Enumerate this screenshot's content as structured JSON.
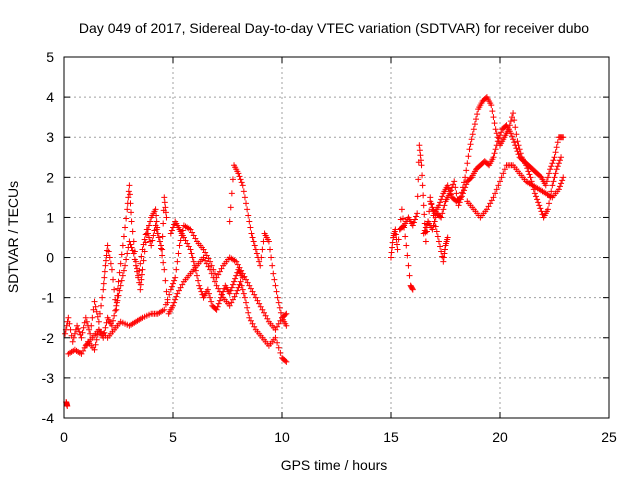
{
  "chart_data": {
    "type": "scatter",
    "title": "Day 049 of 2017, Sidereal Day-to-day VTEC variation (SDTVAR) for receiver dubo",
    "xlabel": "GPS time / hours",
    "ylabel": "SDTVAR / TECUs",
    "xlim": [
      0,
      25
    ],
    "ylim": [
      -4,
      5
    ],
    "xticks": [
      0,
      5,
      10,
      15,
      20,
      25
    ],
    "yticks": [
      -4,
      -3,
      -2,
      -1,
      0,
      1,
      2,
      3,
      4,
      5
    ],
    "grid": true,
    "marker": "+",
    "series": [
      {
        "name": "SDTVAR",
        "color": "#ff0000",
        "segments": [
          [
            [
              0.05,
              -1.9
            ],
            [
              0.2,
              -1.5
            ],
            [
              0.4,
              -2.1
            ],
            [
              0.6,
              -1.7
            ],
            [
              0.8,
              -2.0
            ],
            [
              1.0,
              -1.5
            ],
            [
              1.2,
              -1.9
            ],
            [
              1.4,
              -1.1
            ],
            [
              1.6,
              -1.6
            ],
            [
              1.8,
              -0.8
            ],
            [
              1.9,
              -0.2
            ],
            [
              2.0,
              0.3
            ],
            [
              2.2,
              -0.3
            ],
            [
              2.4,
              -1.3
            ],
            [
              2.5,
              -0.6
            ],
            [
              2.7,
              0.3
            ],
            [
              2.9,
              1.2
            ],
            [
              3.0,
              1.8
            ],
            [
              3.1,
              0.9
            ],
            [
              3.3,
              -0.1
            ],
            [
              3.5,
              -0.8
            ],
            [
              3.6,
              -0.3
            ],
            [
              3.8,
              0.6
            ],
            [
              4.0,
              1.0
            ],
            [
              4.2,
              1.2
            ],
            [
              4.3,
              0.6
            ],
            [
              4.5,
              0.2
            ],
            [
              4.6,
              1.5
            ],
            [
              4.7,
              1.0
            ]
          ],
          [
            [
              0.2,
              -2.4
            ],
            [
              0.5,
              -2.3
            ],
            [
              0.8,
              -2.4
            ],
            [
              1.1,
              -2.1
            ],
            [
              1.4,
              -2.3
            ],
            [
              1.6,
              -1.8
            ],
            [
              1.8,
              -2.0
            ],
            [
              2.0,
              -1.5
            ],
            [
              2.2,
              -1.7
            ],
            [
              2.4,
              -1.2
            ],
            [
              2.6,
              -0.7
            ],
            [
              2.8,
              -0.2
            ],
            [
              3.0,
              0.4
            ],
            [
              3.2,
              0.1
            ],
            [
              3.4,
              -0.5
            ],
            [
              3.6,
              0.2
            ],
            [
              3.8,
              0.7
            ],
            [
              4.0,
              0.3
            ],
            [
              4.2,
              0.8
            ],
            [
              4.4,
              0.4
            ],
            [
              4.6,
              -0.3
            ],
            [
              4.8,
              -1.4
            ],
            [
              5.0,
              -1.2
            ],
            [
              5.2,
              -0.9
            ],
            [
              5.5,
              -0.6
            ],
            [
              5.8,
              -0.4
            ],
            [
              6.1,
              -0.2
            ],
            [
              6.4,
              0.0
            ],
            [
              6.7,
              -0.3
            ],
            [
              7.0,
              -0.7
            ],
            [
              7.3,
              -1.0
            ],
            [
              7.6,
              -1.2
            ],
            [
              7.9,
              -0.9
            ],
            [
              8.1,
              -0.6
            ],
            [
              8.3,
              -1.0
            ],
            [
              8.5,
              -1.5
            ],
            [
              8.8,
              -1.8
            ],
            [
              9.1,
              -2.0
            ],
            [
              9.4,
              -2.2
            ],
            [
              9.7,
              -2.0
            ],
            [
              10.0,
              -2.5
            ],
            [
              10.2,
              -2.6
            ]
          ],
          [
            [
              1.0,
              -2.2
            ],
            [
              1.3,
              -2.0
            ],
            [
              1.6,
              -1.8
            ],
            [
              2.0,
              -2.0
            ],
            [
              2.3,
              -1.8
            ],
            [
              2.6,
              -1.6
            ],
            [
              3.0,
              -1.7
            ],
            [
              3.3,
              -1.6
            ],
            [
              3.6,
              -1.5
            ],
            [
              4.0,
              -1.4
            ],
            [
              4.3,
              -1.4
            ],
            [
              4.6,
              -1.3
            ],
            [
              4.9,
              -0.8
            ],
            [
              5.1,
              -0.5
            ],
            [
              5.3,
              0.3
            ],
            [
              5.5,
              0.8
            ],
            [
              5.8,
              0.7
            ],
            [
              6.1,
              0.4
            ],
            [
              6.4,
              0.2
            ],
            [
              6.7,
              -0.1
            ],
            [
              7.0,
              -0.5
            ],
            [
              7.3,
              -0.2
            ],
            [
              7.6,
              0.0
            ],
            [
              7.9,
              -0.1
            ],
            [
              8.2,
              -0.4
            ],
            [
              8.5,
              -0.7
            ],
            [
              8.8,
              -1.0
            ],
            [
              9.1,
              -1.3
            ],
            [
              9.4,
              -1.6
            ],
            [
              9.7,
              -1.8
            ],
            [
              10.0,
              -1.5
            ],
            [
              10.2,
              -1.4
            ]
          ],
          [
            [
              4.9,
              0.6
            ],
            [
              5.1,
              0.9
            ],
            [
              5.3,
              0.7
            ],
            [
              5.5,
              0.5
            ],
            [
              5.8,
              0.2
            ],
            [
              6.0,
              -0.2
            ],
            [
              6.2,
              -0.7
            ],
            [
              6.4,
              -1.0
            ],
            [
              6.6,
              -0.8
            ],
            [
              6.8,
              -1.2
            ],
            [
              7.0,
              -1.3
            ],
            [
              7.2,
              -1.0
            ],
            [
              7.4,
              -0.7
            ],
            [
              7.6,
              -0.9
            ],
            [
              7.8,
              -0.6
            ],
            [
              8.0,
              -0.3
            ],
            [
              8.2,
              -0.5
            ]
          ],
          [
            [
              7.6,
              0.9
            ],
            [
              7.8,
              2.3
            ],
            [
              8.0,
              2.1
            ],
            [
              8.2,
              1.8
            ],
            [
              8.4,
              1.2
            ],
            [
              8.6,
              0.6
            ],
            [
              8.8,
              0.2
            ],
            [
              9.0,
              -0.2
            ],
            [
              9.2,
              0.6
            ],
            [
              9.4,
              0.4
            ],
            [
              9.6,
              -0.4
            ],
            [
              9.8,
              -1.0
            ],
            [
              10.0,
              -1.5
            ],
            [
              10.2,
              -1.7
            ]
          ],
          [
            [
              0.1,
              -3.6
            ],
            [
              0.15,
              -3.7
            ]
          ],
          [
            [
              15.0,
              0.0
            ],
            [
              15.1,
              0.5
            ],
            [
              15.2,
              0.7
            ],
            [
              15.3,
              0.2
            ],
            [
              15.5,
              1.2
            ],
            [
              15.7,
              0.3
            ],
            [
              15.9,
              -0.7
            ],
            [
              16.0,
              -0.8
            ]
          ],
          [
            [
              15.4,
              0.7
            ],
            [
              15.6,
              0.8
            ],
            [
              15.8,
              1.0
            ],
            [
              16.0,
              0.8
            ],
            [
              16.2,
              1.1
            ],
            [
              16.3,
              2.8
            ],
            [
              16.4,
              2.3
            ],
            [
              16.5,
              1.3
            ],
            [
              16.6,
              0.4
            ],
            [
              16.8,
              1.4
            ],
            [
              17.0,
              1.1
            ],
            [
              17.2,
              1.3
            ],
            [
              17.4,
              1.6
            ],
            [
              17.6,
              1.8
            ],
            [
              17.8,
              1.5
            ],
            [
              18.0,
              1.4
            ],
            [
              18.2,
              1.5
            ],
            [
              18.4,
              2.0
            ],
            [
              18.6,
              2.7
            ],
            [
              18.8,
              3.2
            ],
            [
              19.0,
              3.7
            ],
            [
              19.2,
              3.9
            ],
            [
              19.4,
              4.0
            ],
            [
              19.6,
              3.8
            ],
            [
              19.8,
              3.2
            ],
            [
              20.0,
              2.8
            ],
            [
              20.2,
              3.0
            ],
            [
              20.4,
              3.2
            ],
            [
              20.6,
              3.6
            ],
            [
              20.8,
              2.9
            ],
            [
              21.0,
              2.5
            ],
            [
              21.2,
              2.3
            ],
            [
              21.4,
              2.0
            ],
            [
              21.6,
              1.6
            ],
            [
              21.8,
              1.3
            ],
            [
              22.0,
              1.0
            ],
            [
              22.2,
              1.2
            ],
            [
              22.4,
              1.8
            ],
            [
              22.6,
              2.2
            ],
            [
              22.8,
              2.5
            ]
          ],
          [
            [
              16.5,
              0.6
            ],
            [
              16.7,
              0.9
            ],
            [
              16.9,
              0.7
            ],
            [
              17.1,
              1.1
            ],
            [
              17.3,
              1.0
            ],
            [
              17.5,
              1.4
            ],
            [
              17.7,
              1.6
            ],
            [
              17.9,
              1.9
            ],
            [
              18.1,
              1.3
            ],
            [
              18.3,
              1.6
            ],
            [
              18.5,
              1.9
            ],
            [
              18.7,
              2.0
            ],
            [
              18.9,
              2.2
            ],
            [
              19.1,
              2.3
            ],
            [
              19.3,
              2.4
            ],
            [
              19.5,
              2.3
            ],
            [
              19.7,
              2.5
            ],
            [
              19.9,
              2.9
            ],
            [
              20.1,
              3.2
            ],
            [
              20.3,
              3.3
            ],
            [
              20.5,
              3.1
            ],
            [
              20.7,
              2.8
            ],
            [
              20.9,
              2.5
            ],
            [
              21.1,
              2.4
            ],
            [
              21.3,
              2.3
            ],
            [
              21.5,
              2.2
            ],
            [
              21.7,
              2.1
            ],
            [
              21.9,
              2.0
            ],
            [
              22.1,
              1.8
            ],
            [
              22.3,
              2.2
            ],
            [
              22.5,
              2.5
            ],
            [
              22.7,
              3.0
            ],
            [
              22.9,
              3.0
            ]
          ],
          [
            [
              18.5,
              1.4
            ],
            [
              18.8,
              1.2
            ],
            [
              19.1,
              1.0
            ],
            [
              19.4,
              1.2
            ],
            [
              19.7,
              1.5
            ],
            [
              20.0,
              1.9
            ],
            [
              20.3,
              2.3
            ],
            [
              20.6,
              2.3
            ],
            [
              20.9,
              2.1
            ],
            [
              21.2,
              1.9
            ],
            [
              21.5,
              1.8
            ],
            [
              21.8,
              1.7
            ],
            [
              22.1,
              1.6
            ],
            [
              22.4,
              1.5
            ],
            [
              22.7,
              1.7
            ],
            [
              22.9,
              2.0
            ]
          ],
          [
            [
              16.8,
              1.5
            ],
            [
              17.0,
              0.9
            ],
            [
              17.2,
              0.4
            ],
            [
              17.4,
              -0.1
            ],
            [
              17.5,
              0.3
            ],
            [
              17.6,
              0.5
            ]
          ]
        ]
      }
    ]
  }
}
